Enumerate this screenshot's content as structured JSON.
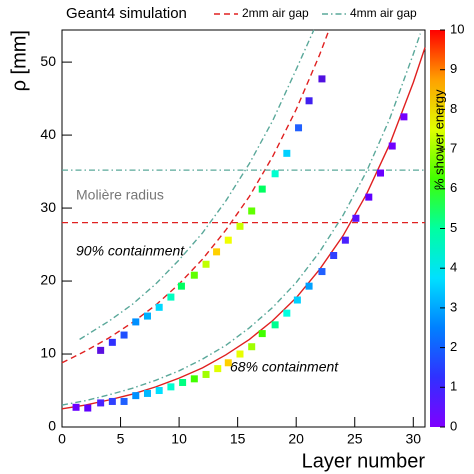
{
  "chart_data": {
    "type": "scatter",
    "title": "Geant4 simulation",
    "x_label": "Layer number",
    "y_label": "ρ [mm]",
    "xlim": [
      0,
      31
    ],
    "ylim": [
      0,
      54.4
    ],
    "xticks": [
      0,
      5,
      10,
      15,
      20,
      25,
      30
    ],
    "yticks": [
      0,
      10,
      20,
      30,
      40,
      50
    ],
    "series": [
      {
        "x": [
          3.3,
          4.3,
          5.3,
          6.3,
          7.3,
          8.3,
          9.3,
          10.2,
          11.3,
          12.3,
          13.2,
          14.2,
          15.2,
          16.2,
          17.1,
          18.2,
          19.2,
          20.2,
          21.1,
          22.2
        ],
        "values": [
          10.5,
          11.6,
          12.6,
          14.4,
          15.2,
          16.4,
          17.8,
          19.3,
          20.8,
          22.3,
          24.0,
          25.6,
          27.5,
          29.6,
          32.6,
          34.7,
          37.5,
          41.0,
          44.7,
          47.7
        ],
        "colors": [
          "#5a10e0",
          "#3030ff",
          "#2050ff",
          "#0090ff",
          "#00b0ff",
          "#00d8ff",
          "#00ffc0",
          "#00ff60",
          "#60ff00",
          "#c0ff00",
          "#ffd000",
          "#f0ff00",
          "#c8ff00",
          "#60ff00",
          "#00ff60",
          "#00ffd0",
          "#00d0ff",
          "#2060ff",
          "#4020f0",
          "#5010e0"
        ]
      },
      {
        "x": [
          1.2,
          2.2,
          3.3,
          4.3,
          5.3,
          6.3,
          7.3,
          8.3,
          9.3,
          10.3,
          11.3,
          12.3,
          13.3,
          14.2,
          15.2,
          16.2,
          17.1,
          18.2,
          19.2,
          20.1,
          21.1,
          22.2,
          23.2,
          24.2,
          25.1,
          26.2,
          27.2,
          28.2,
          29.2
        ],
        "values": [
          2.7,
          2.6,
          3.3,
          3.5,
          3.5,
          4.3,
          4.6,
          5.0,
          5.5,
          6.1,
          6.6,
          7.2,
          8.0,
          8.8,
          10.0,
          11.0,
          12.8,
          14.0,
          15.6,
          17.4,
          19.3,
          21.3,
          23.5,
          25.6,
          28.6,
          31.5,
          34.8,
          38.5,
          42.5
        ],
        "colors": [
          "#6a00ff",
          "#6000ff",
          "#4a20ff",
          "#3040ff",
          "#2060ff",
          "#0090ff",
          "#00b8ff",
          "#00e0ff",
          "#00ffd0",
          "#00ff80",
          "#40ff00",
          "#a0ff00",
          "#e0ff00",
          "#ffd000",
          "#e8ff00",
          "#a0ff00",
          "#40ff00",
          "#00ff90",
          "#00ffe0",
          "#00d0ff",
          "#00a0ff",
          "#2060ff",
          "#3040ff",
          "#4a20ff",
          "#5a10ff",
          "#6000ff",
          "#6a00ff",
          "#7000ff",
          "#7600ff"
        ]
      }
    ],
    "lines": [
      {
        "name": "2mm air gap",
        "color": "#e02020",
        "dash": "6,4",
        "hline": 28.0,
        "curves": [
          {
            "x": [
              0,
              2,
              4,
              6,
              8,
              10,
              12,
              14,
              16,
              18,
              20,
              22,
              22.8
            ],
            "values": [
              8.8,
              10.4,
              12.2,
              14.3,
              16.7,
              19.6,
              23.0,
              27.0,
              31.6,
              37.1,
              43.5,
              51.0,
              54.4
            ],
            "dash": "6,4"
          },
          {
            "x": [
              0,
              2,
              4,
              6,
              8,
              10,
              12,
              14,
              16,
              18,
              20,
              22,
              24,
              26,
              28,
              30,
              31
            ],
            "values": [
              2.5,
              3.0,
              3.7,
              4.5,
              5.5,
              6.7,
              8.1,
              9.9,
              12.0,
              14.6,
              17.7,
              21.6,
              26.2,
              31.9,
              38.8,
              47.2,
              52.0
            ],
            "dash": "none"
          }
        ]
      },
      {
        "name": "4mm air gap",
        "color": "#5aa89a",
        "dash": "6,3,1.5,3",
        "hline": 35.2,
        "curves": [
          {
            "x": [
              1.5,
              4,
              6,
              8,
              10,
              12,
              14,
              16,
              18,
              20,
              21.5
            ],
            "values": [
              12.0,
              14.5,
              16.8,
              19.6,
              22.9,
              26.6,
              31.0,
              36.1,
              42.0,
              49.0,
              54.4
            ],
            "dash": "6,3,1.5,3"
          },
          {
            "x": [
              0,
              2,
              4,
              6,
              8,
              10,
              12,
              14,
              16,
              18,
              20,
              22,
              24,
              26,
              28,
              30,
              30.6
            ],
            "values": [
              3.0,
              3.6,
              4.4,
              5.3,
              6.4,
              7.7,
              9.3,
              11.2,
              13.6,
              16.4,
              19.8,
              24.0,
              29.0,
              35.0,
              42.3,
              51.1,
              53.9
            ],
            "dash": "6,3,1.5,3"
          }
        ]
      }
    ],
    "annotations": [
      "Molière radius",
      "90% containment",
      "68% containment"
    ],
    "colorbar": {
      "label": "% shower energy",
      "lim": [
        0,
        10
      ],
      "ticks": [
        0,
        1,
        2,
        3,
        4,
        5,
        6,
        7,
        8,
        9,
        10
      ],
      "colors": [
        "#7f00ff",
        "#3030ff",
        "#0080ff",
        "#00e0ff",
        "#00ffa0",
        "#40ff00",
        "#e0ff00",
        "#ffa000",
        "#ff0000"
      ]
    }
  }
}
